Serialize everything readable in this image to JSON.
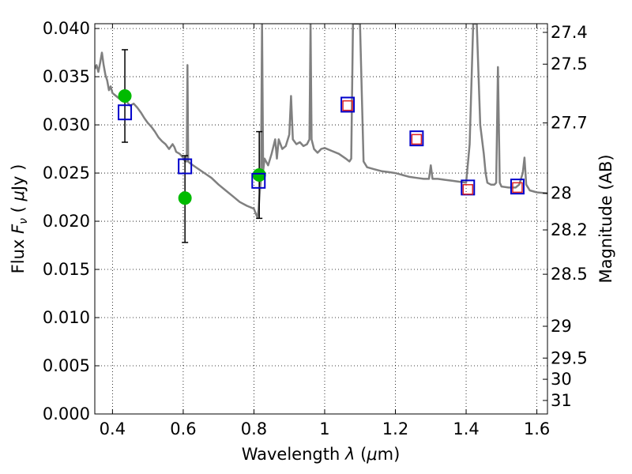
{
  "chart_data": {
    "type": "scatter",
    "xlabel": "Wavelength  λ (μm)",
    "ylabel": "Flux  F_ν  ( μJy )",
    "ylabel_parts": {
      "pre": "Flux ",
      "var": "F",
      "sub": "ν",
      "post": "  ( ",
      "mu": "μ",
      "unit": "Jy )"
    },
    "xlabel_parts": {
      "pre": "Wavelength  ",
      "var": "λ",
      "mid": " (",
      "mu": "μ",
      "post": "m)"
    },
    "y2label": "Magnitude (AB)",
    "xlim": [
      0.35,
      1.63
    ],
    "ylim": [
      0.0,
      0.0405
    ],
    "grid": true,
    "x_ticks": [
      0.4,
      0.6,
      0.8,
      1.0,
      1.2,
      1.4,
      1.6
    ],
    "x_tick_labels": [
      "0.4",
      "0.6",
      "0.8",
      "1",
      "1.2",
      "1.4",
      "1.6"
    ],
    "y_ticks": [
      0.0,
      0.005,
      0.01,
      0.015,
      0.02,
      0.025,
      0.03,
      0.035,
      0.04
    ],
    "y_tick_labels": [
      "0.000",
      "0.005",
      "0.010",
      "0.015",
      "0.020",
      "0.025",
      "0.030",
      "0.035",
      "0.040"
    ],
    "magnitude_ticks": [
      {
        "label": "27.4",
        "flux": 0.0396
      },
      {
        "label": "27.5",
        "flux": 0.0363
      },
      {
        "label": "27.7",
        "flux": 0.0302
      },
      {
        "label": "28",
        "flux": 0.0229
      },
      {
        "label": "28.2",
        "flux": 0.0191
      },
      {
        "label": "28.5",
        "flux": 0.0145
      },
      {
        "label": "29",
        "flux": 0.0091
      },
      {
        "label": "29.5",
        "flux": 0.0058
      },
      {
        "label": "30",
        "flux": 0.0036
      },
      {
        "label": "31",
        "flux": 0.0014
      }
    ],
    "series": [
      {
        "kind": "model-spectrum",
        "color": "#808080",
        "points": [
          [
            0.35,
            0.0358
          ],
          [
            0.355,
            0.0362
          ],
          [
            0.36,
            0.0355
          ],
          [
            0.365,
            0.0364
          ],
          [
            0.37,
            0.0375
          ],
          [
            0.375,
            0.0362
          ],
          [
            0.38,
            0.0352
          ],
          [
            0.385,
            0.0346
          ],
          [
            0.39,
            0.0336
          ],
          [
            0.395,
            0.034
          ],
          [
            0.4,
            0.0333
          ],
          [
            0.41,
            0.033
          ],
          [
            0.42,
            0.0327
          ],
          [
            0.43,
            0.0327
          ],
          [
            0.44,
            0.0324
          ],
          [
            0.45,
            0.032
          ],
          [
            0.46,
            0.0322
          ],
          [
            0.47,
            0.0318
          ],
          [
            0.48,
            0.0313
          ],
          [
            0.49,
            0.0307
          ],
          [
            0.5,
            0.0302
          ],
          [
            0.51,
            0.0298
          ],
          [
            0.52,
            0.0293
          ],
          [
            0.53,
            0.0287
          ],
          [
            0.54,
            0.0283
          ],
          [
            0.55,
            0.028
          ],
          [
            0.56,
            0.0275
          ],
          [
            0.57,
            0.028
          ],
          [
            0.575,
            0.0277
          ],
          [
            0.58,
            0.0272
          ],
          [
            0.59,
            0.027
          ],
          [
            0.6,
            0.0266
          ],
          [
            0.605,
            0.0262
          ],
          [
            0.61,
            0.0262
          ],
          [
            0.612,
            0.0362
          ],
          [
            0.614,
            0.0262
          ],
          [
            0.62,
            0.026
          ],
          [
            0.64,
            0.0255
          ],
          [
            0.66,
            0.025
          ],
          [
            0.68,
            0.0245
          ],
          [
            0.7,
            0.0238
          ],
          [
            0.72,
            0.0232
          ],
          [
            0.74,
            0.0226
          ],
          [
            0.76,
            0.022
          ],
          [
            0.78,
            0.0216
          ],
          [
            0.8,
            0.0213
          ],
          [
            0.805,
            0.0208
          ],
          [
            0.81,
            0.0204
          ],
          [
            0.813,
            0.0212
          ],
          [
            0.816,
            0.0228
          ],
          [
            0.82,
            0.0245
          ],
          [
            0.823,
            0.0405
          ],
          [
            0.826,
            0.0252
          ],
          [
            0.83,
            0.0265
          ],
          [
            0.84,
            0.0258
          ],
          [
            0.85,
            0.027
          ],
          [
            0.86,
            0.0285
          ],
          [
            0.865,
            0.0265
          ],
          [
            0.87,
            0.0285
          ],
          [
            0.88,
            0.0275
          ],
          [
            0.89,
            0.0278
          ],
          [
            0.9,
            0.029
          ],
          [
            0.905,
            0.033
          ],
          [
            0.91,
            0.0285
          ],
          [
            0.92,
            0.028
          ],
          [
            0.93,
            0.0282
          ],
          [
            0.94,
            0.0278
          ],
          [
            0.95,
            0.028
          ],
          [
            0.957,
            0.0285
          ],
          [
            0.96,
            0.0405
          ],
          [
            0.963,
            0.0285
          ],
          [
            0.97,
            0.0275
          ],
          [
            0.98,
            0.0271
          ],
          [
            0.99,
            0.0275
          ],
          [
            1.0,
            0.0276
          ],
          [
            1.02,
            0.0273
          ],
          [
            1.04,
            0.027
          ],
          [
            1.06,
            0.0265
          ],
          [
            1.07,
            0.0262
          ],
          [
            1.075,
            0.0265
          ],
          [
            1.08,
            0.0405
          ],
          [
            1.09,
            0.0405
          ],
          [
            1.1,
            0.0405
          ],
          [
            1.11,
            0.0262
          ],
          [
            1.12,
            0.0256
          ],
          [
            1.14,
            0.0254
          ],
          [
            1.16,
            0.0252
          ],
          [
            1.18,
            0.0251
          ],
          [
            1.2,
            0.025
          ],
          [
            1.22,
            0.0248
          ],
          [
            1.24,
            0.0246
          ],
          [
            1.26,
            0.0245
          ],
          [
            1.28,
            0.0244
          ],
          [
            1.295,
            0.0244
          ],
          [
            1.3,
            0.0258
          ],
          [
            1.305,
            0.0244
          ],
          [
            1.32,
            0.0244
          ],
          [
            1.34,
            0.0243
          ],
          [
            1.36,
            0.0242
          ],
          [
            1.38,
            0.0241
          ],
          [
            1.4,
            0.024
          ],
          [
            1.405,
            0.026
          ],
          [
            1.41,
            0.028
          ],
          [
            1.42,
            0.0405
          ],
          [
            1.43,
            0.0405
          ],
          [
            1.44,
            0.03
          ],
          [
            1.45,
            0.027
          ],
          [
            1.455,
            0.025
          ],
          [
            1.46,
            0.024
          ],
          [
            1.47,
            0.0238
          ],
          [
            1.48,
            0.0238
          ],
          [
            1.485,
            0.024
          ],
          [
            1.49,
            0.036
          ],
          [
            1.495,
            0.024
          ],
          [
            1.5,
            0.0236
          ],
          [
            1.52,
            0.0235
          ],
          [
            1.54,
            0.0235
          ],
          [
            1.55,
            0.0238
          ],
          [
            1.56,
            0.025
          ],
          [
            1.565,
            0.0266
          ],
          [
            1.57,
            0.0238
          ],
          [
            1.58,
            0.0232
          ],
          [
            1.6,
            0.023
          ],
          [
            1.63,
            0.0229
          ]
        ]
      },
      {
        "kind": "observed-with-errors",
        "color": "#00bb00",
        "points": [
          {
            "x": 0.435,
            "y": 0.033,
            "err_lo": 0.0282,
            "err_hi": 0.0378
          },
          {
            "x": 0.605,
            "y": 0.0224,
            "err_lo": 0.0178,
            "err_hi": 0.0268
          },
          {
            "x": 0.815,
            "y": 0.0248,
            "err_lo": 0.0203,
            "err_hi": 0.0293
          }
        ]
      },
      {
        "kind": "synthetic-large-square",
        "color": "#0000cc",
        "points": [
          [
            0.435,
            0.0313
          ],
          [
            0.605,
            0.0257
          ],
          [
            0.813,
            0.0242
          ],
          [
            1.065,
            0.0321
          ],
          [
            1.26,
            0.0286
          ],
          [
            1.405,
            0.0235
          ],
          [
            1.545,
            0.0236
          ]
        ]
      },
      {
        "kind": "synthetic-small-square",
        "color": "#dd2222",
        "points": [
          [
            1.065,
            0.032
          ],
          [
            1.26,
            0.0285
          ],
          [
            1.405,
            0.0233
          ],
          [
            1.545,
            0.0235
          ]
        ]
      }
    ]
  }
}
